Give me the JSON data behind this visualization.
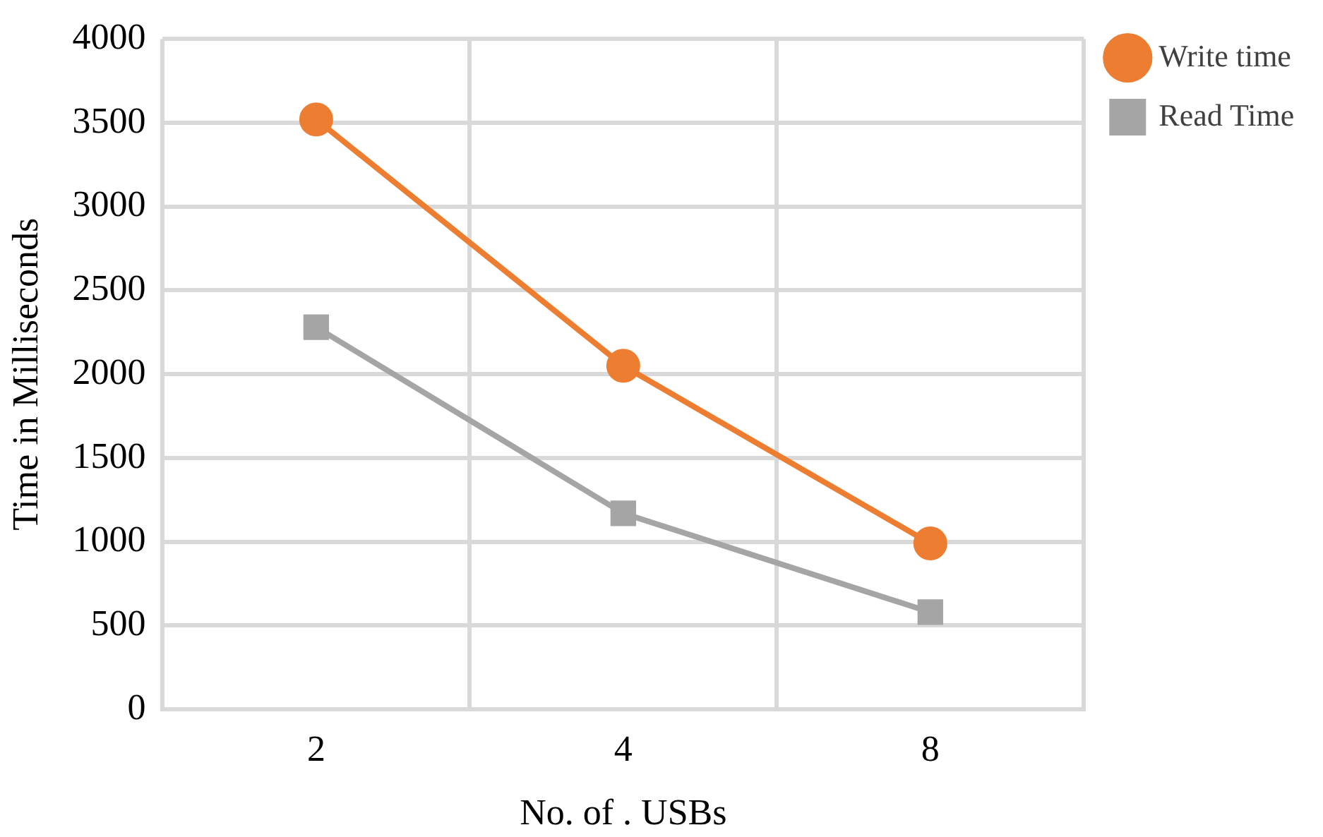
{
  "chart_data": {
    "type": "line",
    "xlabel": "No. of . USBs",
    "ylabel": "Time in Milliseconds",
    "categories": [
      "2",
      "4",
      "8"
    ],
    "series": [
      {
        "name": "Write time",
        "color": "#ed7d31",
        "marker": "circle",
        "values": [
          3520,
          2050,
          990
        ]
      },
      {
        "name": "Read Time",
        "color": "#a5a5a5",
        "marker": "square",
        "values": [
          2280,
          1170,
          580
        ]
      }
    ],
    "ylim": [
      0,
      4000
    ],
    "yticks": [
      0,
      500,
      1000,
      1500,
      2000,
      2500,
      3000,
      3500,
      4000
    ],
    "grid": true,
    "legend": "right"
  }
}
